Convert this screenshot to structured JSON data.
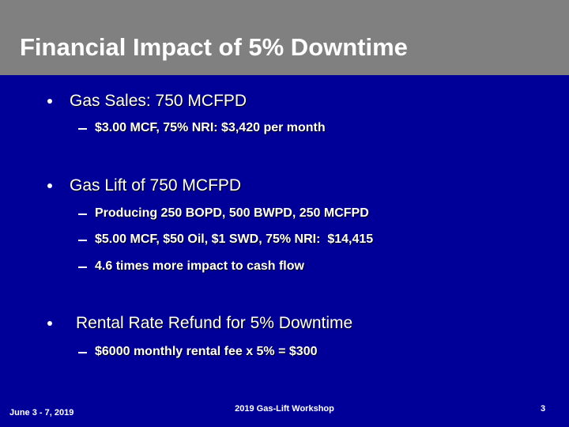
{
  "header": {
    "title": "Financial Impact of 5% Downtime"
  },
  "bullets": [
    {
      "text": "Gas Sales: 750 MCFPD",
      "sub": [
        "$3.00 MCF, 75% NRI: $3,420 per month"
      ]
    },
    {
      "text": "Gas Lift of 750 MCFPD",
      "sub": [
        "Producing 250 BOPD, 500 BWPD, 250 MCFPD",
        "$5.00 MCF, $50 Oil, $1 SWD, 75% NRI:  $14,415",
        "4.6 times more impact to cash flow"
      ]
    },
    {
      "text": "Rental Rate Refund for 5% Downtime",
      "sub": [
        "$6000 monthly rental fee x 5% = $300"
      ]
    }
  ],
  "footer": {
    "date": "June 3 - 7, 2019",
    "event": "2019 Gas-Lift Workshop",
    "page": "3"
  }
}
